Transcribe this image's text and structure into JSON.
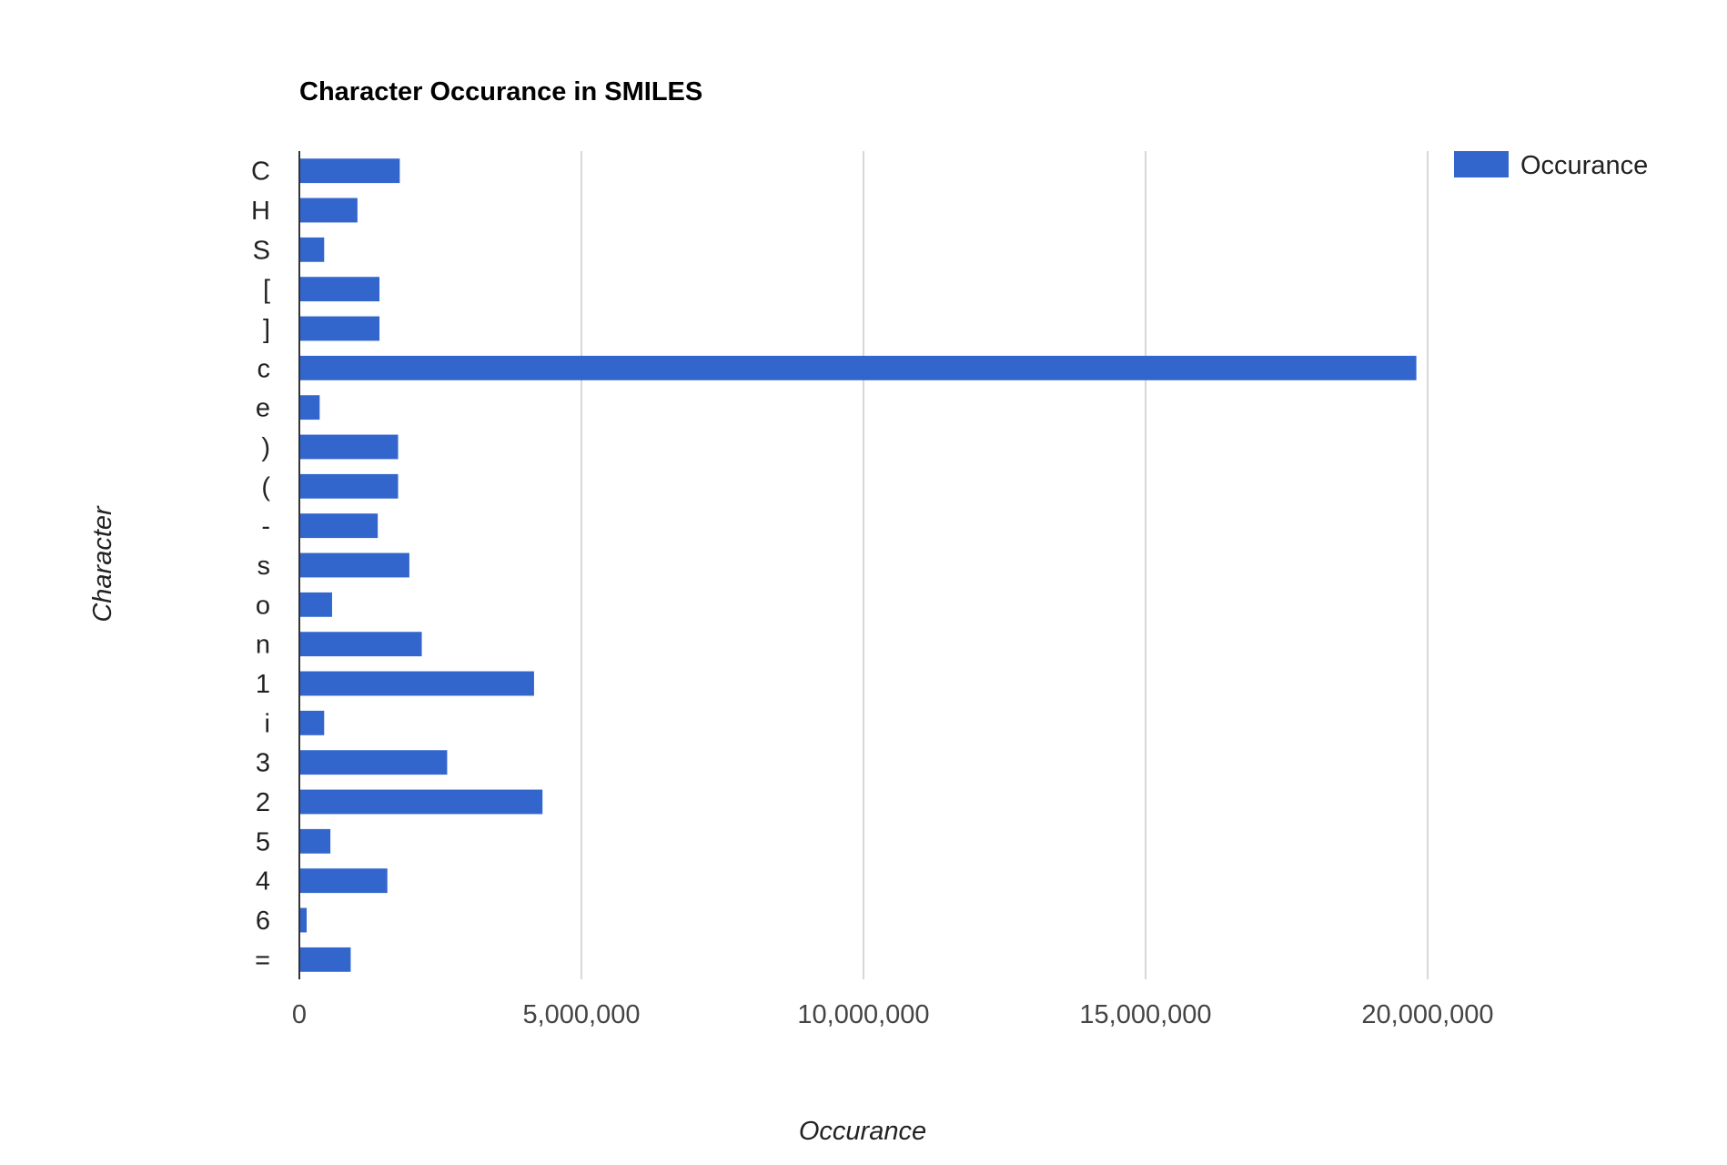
{
  "chart_data": {
    "type": "bar",
    "orientation": "horizontal",
    "title": "Character Occurance in SMILES",
    "xlabel": "Occurance",
    "ylabel": "Character",
    "xlim": [
      0,
      24000000
    ],
    "xticks": [
      0,
      5000000,
      10000000,
      15000000,
      20000000
    ],
    "xtick_labels": [
      "0",
      "5,000,000",
      "10,000,000",
      "15,000,000",
      "20,000,000"
    ],
    "grid": "vertical",
    "legend_position": "top-right",
    "categories": [
      "C",
      "H",
      "S",
      "[",
      "]",
      "c",
      "e",
      ")",
      "(",
      "-",
      "s",
      "o",
      "n",
      "1",
      "i",
      "3",
      "2",
      "5",
      "4",
      "6",
      "="
    ],
    "series": [
      {
        "name": "Occurance",
        "color": "#3366cc",
        "values": [
          1780000,
          1030000,
          440000,
          1420000,
          1420000,
          19800000,
          360000,
          1750000,
          1750000,
          1390000,
          1950000,
          580000,
          2170000,
          4160000,
          440000,
          2620000,
          4310000,
          550000,
          1560000,
          130000,
          910000
        ]
      }
    ]
  }
}
